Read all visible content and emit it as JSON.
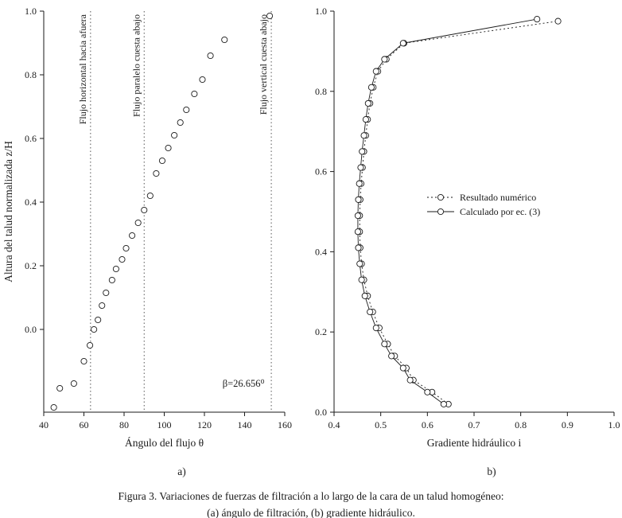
{
  "figure": {
    "caption_line1": "Figura 3. Variaciones de fuerzas de filtración a lo largo de la cara de un talud homogéneo:",
    "caption_line2": "(a) ángulo de filtración, (b) gradiente hidráulico."
  },
  "colors": {
    "ink": "#1a1a1a",
    "reference_line": "#555555",
    "marker_fill": "#ffffff",
    "background": "#ffffff"
  },
  "chart_data": [
    {
      "id": "panel-a",
      "type": "scatter",
      "sublabel": "a)",
      "xlabel": "Ángulo del flujo θ",
      "ylabel": "Altura del talud normalizada z/H",
      "xlim": [
        40,
        160
      ],
      "ylim": [
        -0.26,
        1.0
      ],
      "xticks": [
        40,
        60,
        80,
        100,
        120,
        140,
        160
      ],
      "xtick_labels": [
        "40",
        "60",
        "80",
        "100",
        "120",
        "140",
        "160"
      ],
      "yticks": [
        0,
        0.2,
        0.4,
        0.6,
        0.8,
        1.0
      ],
      "ytick_labels": [
        "0.0",
        "0.2",
        "0.4",
        "0.6",
        "0.8",
        "1.0"
      ],
      "grid": false,
      "points": [
        [
          45,
          -0.245
        ],
        [
          48,
          -0.185
        ],
        [
          55,
          -0.17
        ],
        [
          60,
          -0.1
        ],
        [
          63,
          -0.05
        ],
        [
          65,
          0.0
        ],
        [
          67,
          0.03
        ],
        [
          69,
          0.075
        ],
        [
          71,
          0.115
        ],
        [
          74,
          0.155
        ],
        [
          76,
          0.19
        ],
        [
          79,
          0.22
        ],
        [
          81,
          0.255
        ],
        [
          84,
          0.295
        ],
        [
          87,
          0.335
        ],
        [
          90,
          0.375
        ],
        [
          93,
          0.42
        ],
        [
          96,
          0.49
        ],
        [
          99,
          0.53
        ],
        [
          102,
          0.57
        ],
        [
          105,
          0.61
        ],
        [
          108,
          0.65
        ],
        [
          111,
          0.69
        ],
        [
          115,
          0.74
        ],
        [
          119,
          0.785
        ],
        [
          123,
          0.86
        ],
        [
          130,
          0.91
        ],
        [
          152.5,
          0.985
        ]
      ],
      "reference_lines": [
        {
          "x": 63.3,
          "label": "Flujo horizontal hacia afuera"
        },
        {
          "x": 90,
          "label": "Flujo paralelo cuesta abajo"
        },
        {
          "x": 153.3,
          "label": "Flujo vertical cuesta abajo"
        }
      ],
      "annotation": {
        "text": "β=26.656⁰",
        "x": 129,
        "y": -0.18
      }
    },
    {
      "id": "panel-b",
      "type": "line",
      "sublabel": "b)",
      "xlabel": "Gradiente hidráulico i",
      "ylabel": "",
      "xlim": [
        0.4,
        1.0
      ],
      "ylim": [
        0,
        1.0
      ],
      "xticks": [
        0.4,
        0.5,
        0.6,
        0.7,
        0.8,
        0.9,
        1.0
      ],
      "xtick_labels": [
        "0.4",
        "0.5",
        "0.6",
        "0.7",
        "0.8",
        "0.9",
        "1.0"
      ],
      "yticks": [
        0,
        0.2,
        0.4,
        0.6,
        0.8,
        1.0
      ],
      "ytick_labels": [
        "0.0",
        "0.2",
        "0.4",
        "0.6",
        "0.8",
        "1.0"
      ],
      "grid": false,
      "legend_position": "center-right",
      "series": [
        {
          "name": "Resultado numérico",
          "style": "dotted",
          "points": [
            [
              0.645,
              0.02
            ],
            [
              0.61,
              0.05
            ],
            [
              0.57,
              0.08
            ],
            [
              0.555,
              0.11
            ],
            [
              0.53,
              0.14
            ],
            [
              0.515,
              0.17
            ],
            [
              0.497,
              0.21
            ],
            [
              0.483,
              0.25
            ],
            [
              0.472,
              0.29
            ],
            [
              0.464,
              0.33
            ],
            [
              0.459,
              0.37
            ],
            [
              0.456,
              0.41
            ],
            [
              0.455,
              0.45
            ],
            [
              0.455,
              0.49
            ],
            [
              0.456,
              0.53
            ],
            [
              0.458,
              0.57
            ],
            [
              0.461,
              0.61
            ],
            [
              0.464,
              0.65
            ],
            [
              0.468,
              0.69
            ],
            [
              0.472,
              0.73
            ],
            [
              0.477,
              0.77
            ],
            [
              0.484,
              0.81
            ],
            [
              0.494,
              0.85
            ],
            [
              0.512,
              0.88
            ],
            [
              0.55,
              0.92
            ],
            [
              0.88,
              0.975
            ]
          ]
        },
        {
          "name": "Calculado por ec. (3)",
          "style": "solid",
          "points": [
            [
              0.635,
              0.02
            ],
            [
              0.6,
              0.05
            ],
            [
              0.563,
              0.08
            ],
            [
              0.548,
              0.11
            ],
            [
              0.523,
              0.14
            ],
            [
              0.508,
              0.17
            ],
            [
              0.49,
              0.21
            ],
            [
              0.477,
              0.25
            ],
            [
              0.466,
              0.29
            ],
            [
              0.459,
              0.33
            ],
            [
              0.455,
              0.37
            ],
            [
              0.452,
              0.41
            ],
            [
              0.451,
              0.45
            ],
            [
              0.451,
              0.49
            ],
            [
              0.452,
              0.53
            ],
            [
              0.454,
              0.57
            ],
            [
              0.457,
              0.61
            ],
            [
              0.46,
              0.65
            ],
            [
              0.464,
              0.69
            ],
            [
              0.468,
              0.73
            ],
            [
              0.473,
              0.77
            ],
            [
              0.48,
              0.81
            ],
            [
              0.49,
              0.85
            ],
            [
              0.508,
              0.88
            ],
            [
              0.548,
              0.92
            ],
            [
              0.835,
              0.98
            ]
          ]
        }
      ]
    }
  ]
}
